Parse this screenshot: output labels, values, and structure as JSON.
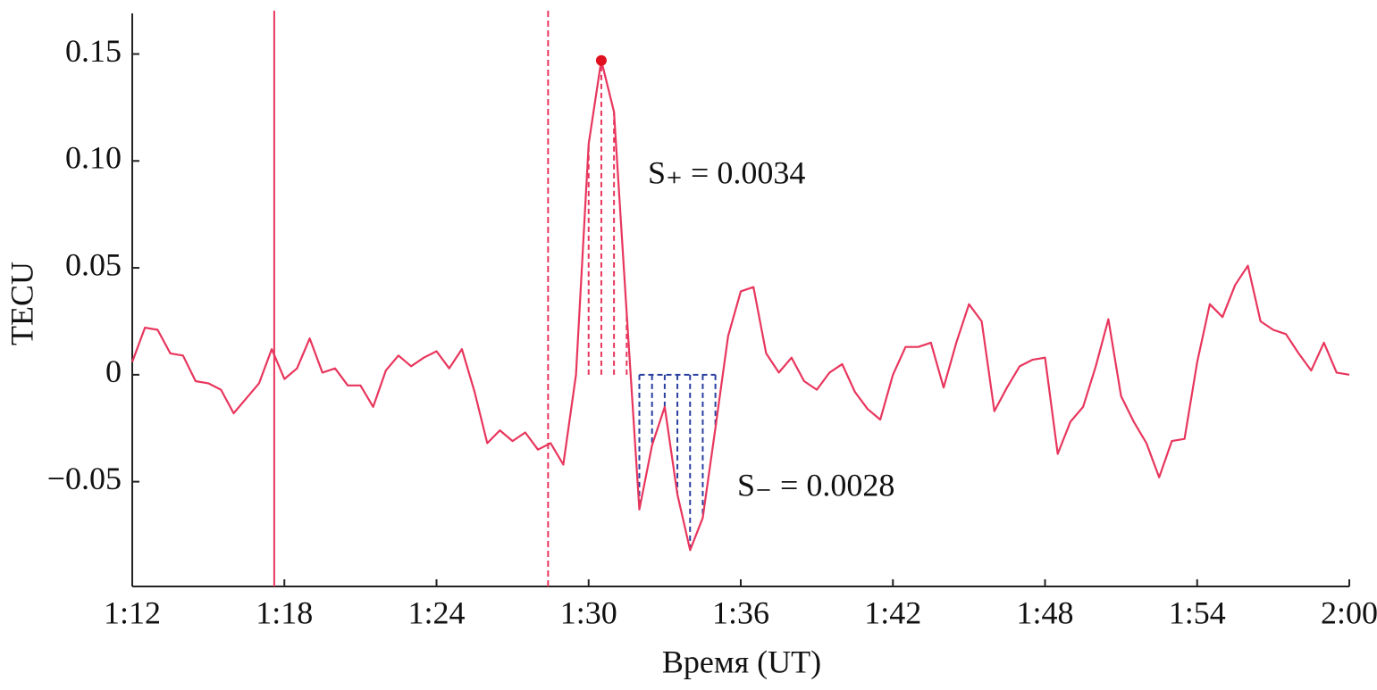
{
  "chart_data": {
    "type": "line",
    "xlabel": "Время (UT)",
    "ylabel": "TECU",
    "x": [
      72,
      72.5,
      73,
      73.5,
      74,
      74.5,
      75,
      75.5,
      76,
      76.5,
      77,
      77.5,
      78,
      78.5,
      79,
      79.5,
      80,
      80.5,
      81,
      81.5,
      82,
      82.5,
      83,
      83.5,
      84,
      84.5,
      85,
      85.5,
      86,
      86.5,
      87,
      87.5,
      88,
      88.5,
      89,
      89.5,
      90,
      90.5,
      91,
      91.5,
      92,
      92.5,
      93,
      93.5,
      94,
      94.5,
      95,
      95.5,
      96,
      96.5,
      97,
      97.5,
      98,
      98.5,
      99,
      99.5,
      100,
      100.5,
      101,
      101.5,
      102,
      102.5,
      103,
      103.5,
      104,
      104.5,
      105,
      105.5,
      106,
      106.5,
      107,
      107.5,
      108,
      108.5,
      109,
      109.5,
      110,
      110.5,
      111,
      111.5,
      112,
      112.5,
      113,
      113.5,
      114,
      114.5,
      115,
      115.5,
      116,
      116.5,
      117,
      117.5,
      118,
      118.5,
      119,
      119.5,
      120
    ],
    "values": [
      0.006,
      0.022,
      0.021,
      0.01,
      0.009,
      -0.003,
      -0.004,
      -0.007,
      -0.018,
      -0.011,
      -0.004,
      0.012,
      -0.002,
      0.003,
      0.017,
      0.001,
      0.003,
      -0.005,
      -0.005,
      -0.015,
      0.002,
      0.009,
      0.004,
      0.008,
      0.011,
      0.003,
      0.012,
      -0.008,
      -0.032,
      -0.026,
      -0.031,
      -0.027,
      -0.035,
      -0.032,
      -0.042,
      0.0,
      0.108,
      0.147,
      0.123,
      0.029,
      -0.063,
      -0.033,
      -0.015,
      -0.056,
      -0.082,
      -0.067,
      -0.025,
      0.018,
      0.039,
      0.041,
      0.01,
      0.001,
      0.008,
      -0.003,
      -0.007,
      0.001,
      0.005,
      -0.008,
      -0.016,
      -0.021,
      0.0,
      0.013,
      0.013,
      0.015,
      -0.006,
      0.015,
      0.033,
      0.025,
      -0.017,
      -0.006,
      0.004,
      0.007,
      0.008,
      -0.037,
      -0.022,
      -0.015,
      0.004,
      0.026,
      -0.01,
      -0.022,
      -0.032,
      -0.048,
      -0.031,
      -0.03,
      0.006,
      0.033,
      0.027,
      0.042,
      0.051,
      0.025,
      0.021,
      0.019,
      0.01,
      0.002,
      0.015,
      0.001,
      0.0
    ],
    "color": "#e8365d",
    "xlim": [
      72,
      120
    ],
    "xticks": [
      {
        "value": 72,
        "label": "1:12"
      },
      {
        "value": 78,
        "label": "1:18"
      },
      {
        "value": 84,
        "label": "1:24"
      },
      {
        "value": 90,
        "label": "1:30"
      },
      {
        "value": 96,
        "label": "1:36"
      },
      {
        "value": 102,
        "label": "1:42"
      },
      {
        "value": 108,
        "label": "1:48"
      },
      {
        "value": 114,
        "label": "1:54"
      },
      {
        "value": 120,
        "label": "2:00"
      }
    ],
    "ylim": [
      -0.099,
      0.169
    ],
    "yticks": [
      {
        "value": -0.05,
        "label": "−0.05"
      },
      0,
      {
        "value": 0.05,
        "label": "0.05"
      },
      {
        "value": 0.1,
        "label": "0.10"
      },
      {
        "value": 0.15,
        "label": "0.15"
      }
    ],
    "grid": false,
    "vlines": [
      {
        "x": 77.6,
        "style": "solid",
        "color": "#e8365d"
      },
      {
        "x": 88.4,
        "style": "dashed",
        "color": "#e8365d"
      }
    ],
    "shading": [
      {
        "from": 90,
        "to": 91.5,
        "color": "#e8365d"
      },
      {
        "from": 92,
        "to": 95,
        "color": "#2a3fa0"
      }
    ],
    "peak_marker": {
      "x": 90.5,
      "color": "#e0101e"
    },
    "annotations": [
      "S₊ = 0.0034",
      "S₋ = 0.0028"
    ]
  }
}
